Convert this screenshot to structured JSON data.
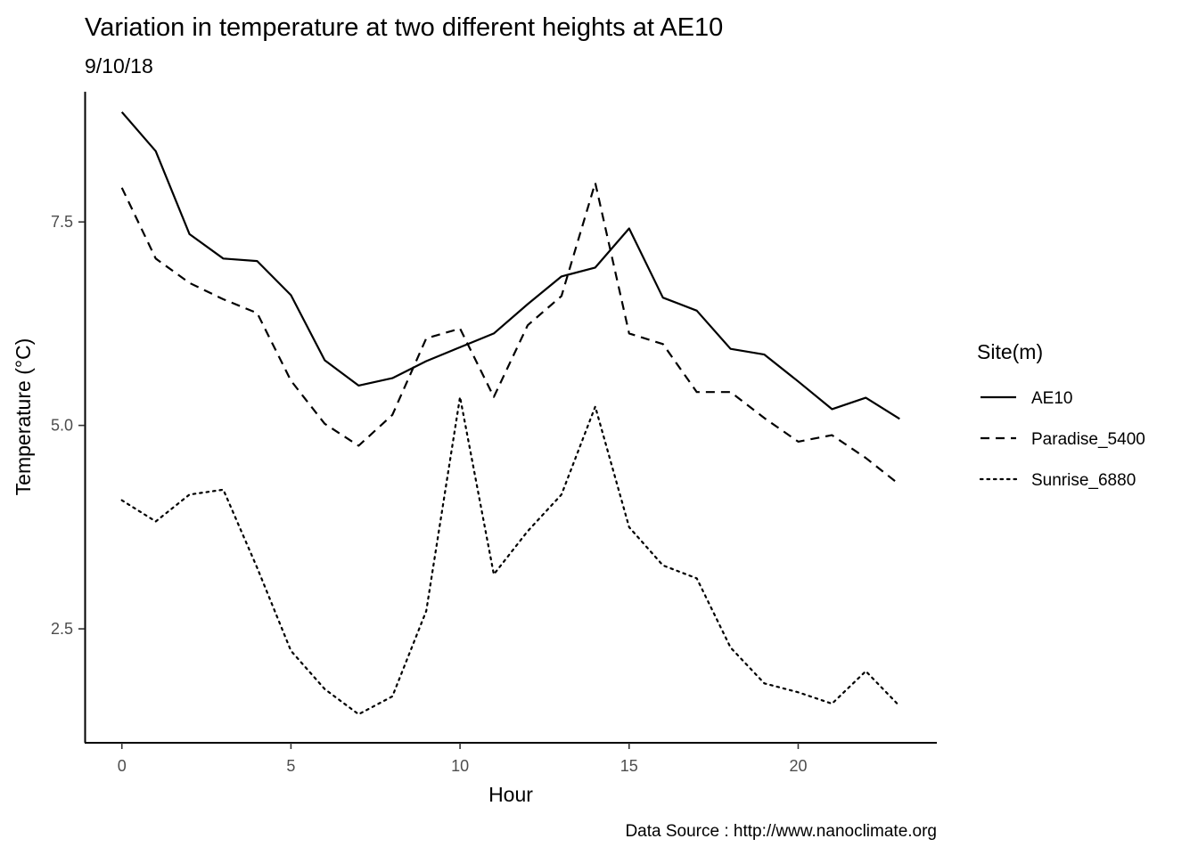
{
  "chart_data": {
    "type": "line",
    "title": "Variation in temperature at two different heights at AE10",
    "subtitle": "9/10/18",
    "xlabel": "Hour",
    "ylabel": "Temperature (°C)",
    "caption": "Data Source : http://www.nanoclimate.org",
    "xlim": [
      -1.1,
      24.1
    ],
    "ylim": [
      1.1,
      9.1
    ],
    "x_ticks": [
      0,
      5,
      10,
      15,
      20
    ],
    "y_ticks": [
      2.5,
      5.0,
      7.5
    ],
    "x_tick_labels": [
      "0",
      "5",
      "10",
      "15",
      "20"
    ],
    "y_tick_labels": [
      "2.5",
      "5.0",
      "7.5"
    ],
    "grid": false,
    "legend": {
      "title": "Site(m)",
      "position": "right"
    },
    "x": [
      0,
      1,
      2,
      3,
      4,
      5,
      6,
      7,
      8,
      9,
      10,
      11,
      12,
      13,
      14,
      15,
      16,
      17,
      18,
      19,
      20,
      21,
      22,
      23
    ],
    "series": [
      {
        "name": "AE10",
        "dash": "solid",
        "values": [
          8.85,
          8.37,
          7.35,
          7.05,
          7.02,
          6.6,
          5.8,
          5.49,
          5.58,
          5.79,
          5.96,
          6.13,
          6.49,
          6.83,
          6.94,
          7.42,
          6.57,
          6.41,
          5.94,
          5.87,
          5.54,
          5.2,
          5.34,
          5.08
        ]
      },
      {
        "name": "Paradise_5400",
        "dash": "dashed",
        "values": [
          7.92,
          7.05,
          6.75,
          6.55,
          6.38,
          5.55,
          5.02,
          4.75,
          5.13,
          6.07,
          6.19,
          5.35,
          6.23,
          6.59,
          7.98,
          6.13,
          6.0,
          5.41,
          5.41,
          5.09,
          4.8,
          4.88,
          4.6,
          4.27
        ]
      },
      {
        "name": "Sunrise_6880",
        "dash": "dotted",
        "values": [
          4.08,
          3.82,
          4.15,
          4.21,
          3.25,
          2.23,
          1.76,
          1.45,
          1.67,
          2.72,
          5.35,
          3.17,
          3.7,
          4.15,
          5.23,
          3.75,
          3.28,
          3.12,
          2.27,
          1.83,
          1.72,
          1.58,
          1.98,
          1.55
        ]
      }
    ]
  }
}
